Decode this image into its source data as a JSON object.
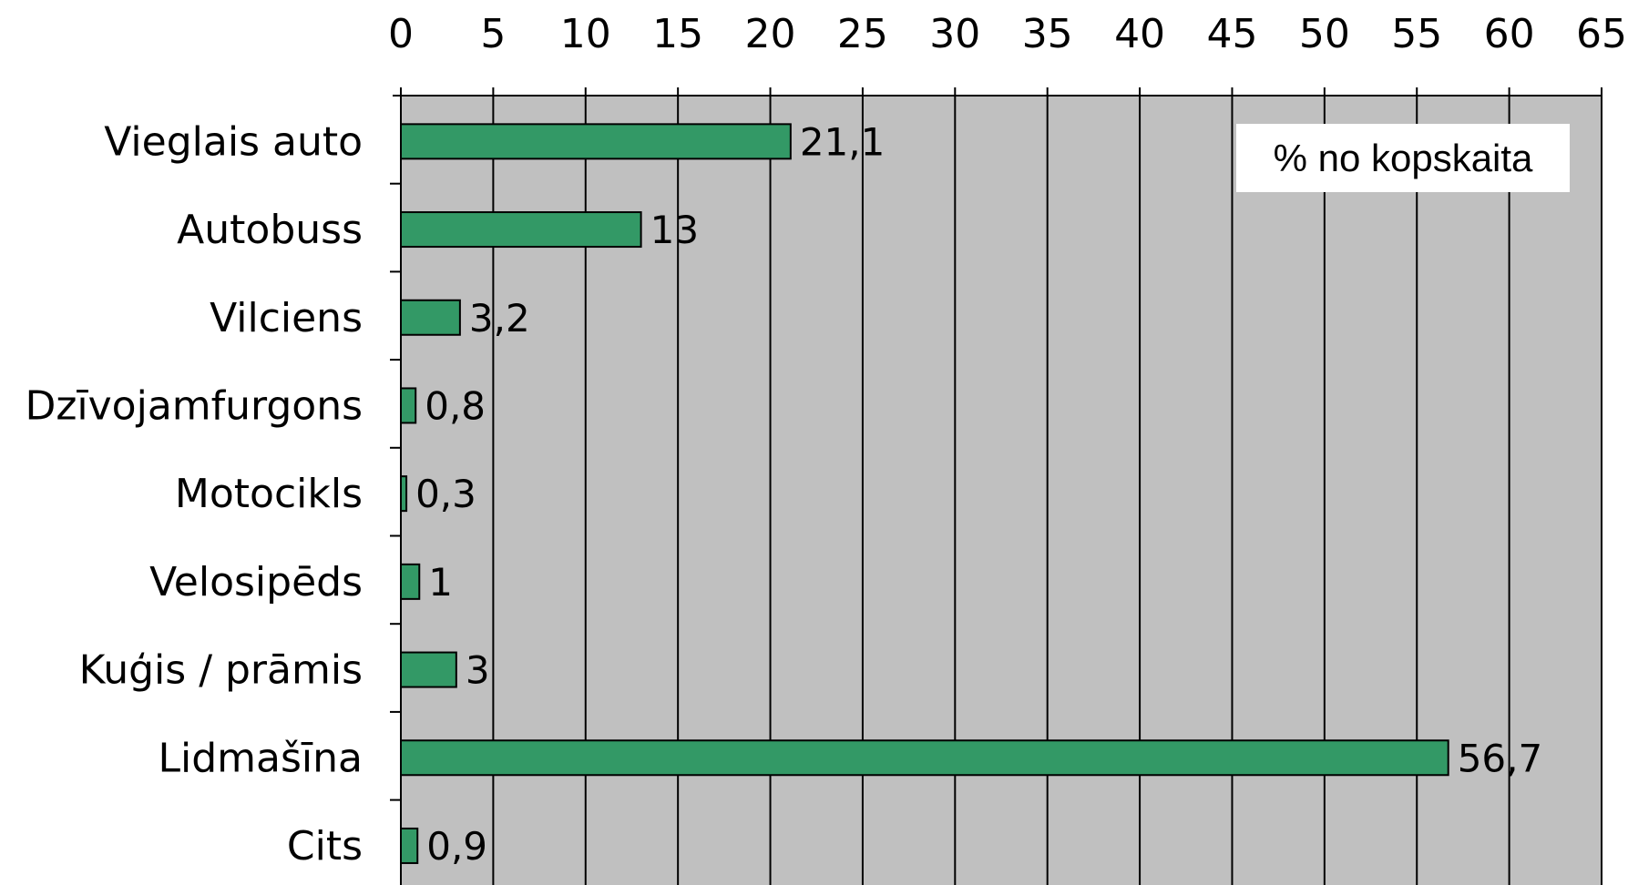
{
  "chart_data": {
    "type": "bar",
    "orientation": "horizontal",
    "title": "",
    "xlabel": "",
    "ylabel": "",
    "categories": [
      "Vieglais auto",
      "Autobuss",
      "Vilciens",
      "Dzīvojamfurgons",
      "Motocikls",
      "Velosipēds",
      "Kuģis / prāmis",
      "Lidmašīna",
      "Cits"
    ],
    "values": [
      21.1,
      13,
      3.2,
      0.8,
      0.3,
      1,
      3,
      56.7,
      0.9
    ],
    "data_labels": [
      "21,1",
      "13",
      "3,2",
      "0,8",
      "0,3",
      "1",
      "3",
      "56,7",
      "0,9"
    ],
    "xlim": [
      0,
      65
    ],
    "x_ticks": [
      0,
      5,
      10,
      15,
      20,
      25,
      30,
      35,
      40,
      45,
      50,
      55,
      60,
      65
    ],
    "x_axis_position": "top",
    "grid": true,
    "annotation": "% no kopskaita",
    "annotation_position": "top-right",
    "bar_color": "#339966",
    "plot_background": "#c0c0c0"
  }
}
